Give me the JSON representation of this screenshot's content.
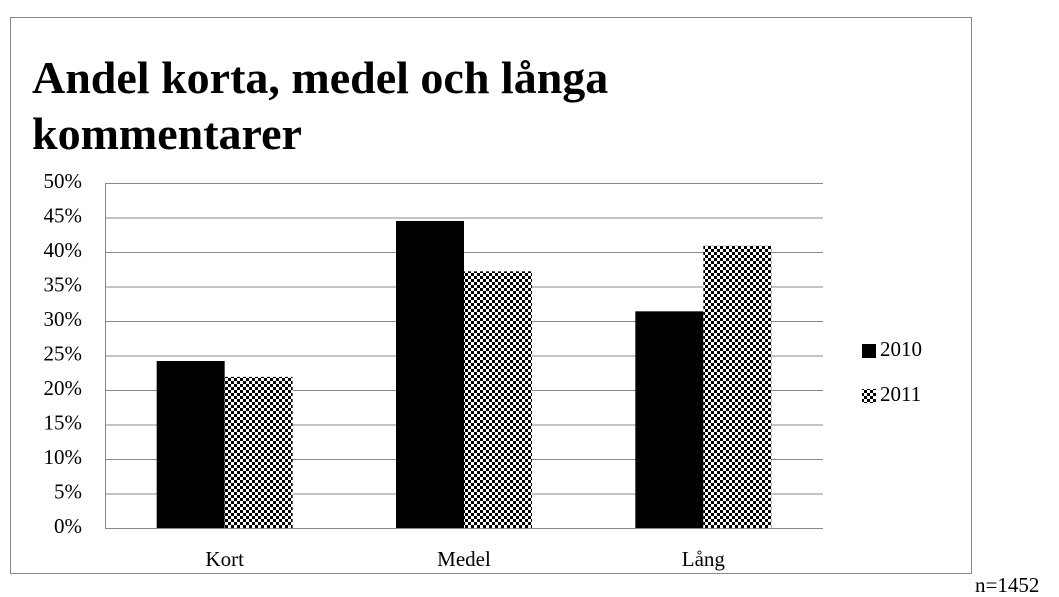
{
  "chart_data": {
    "type": "bar",
    "title": "Andel korta, medel och långa kommentarer",
    "categories": [
      "Kort",
      "Medel",
      "Lång"
    ],
    "series": [
      {
        "name": "2010",
        "color": "#000000",
        "values": [
          24.2,
          44.5,
          31.4
        ]
      },
      {
        "name": "2011",
        "color": "#000000",
        "pattern": "checkerboard",
        "values": [
          21.9,
          37.2,
          40.9
        ]
      }
    ],
    "ylim": [
      0,
      50
    ],
    "yticks": [
      {
        "value": 0,
        "label": "0%"
      },
      {
        "value": 5,
        "label": "5%"
      },
      {
        "value": 10,
        "label": "10%"
      },
      {
        "value": 15,
        "label": "15%"
      },
      {
        "value": 20,
        "label": "20%"
      },
      {
        "value": 25,
        "label": "25%"
      },
      {
        "value": 30,
        "label": "30%"
      },
      {
        "value": 35,
        "label": "35%"
      },
      {
        "value": 40,
        "label": "40%"
      },
      {
        "value": 45,
        "label": "45%"
      },
      {
        "value": 50,
        "label": "50%"
      }
    ],
    "grid": true,
    "legend": "right",
    "annotations": [
      "n=1452"
    ]
  }
}
